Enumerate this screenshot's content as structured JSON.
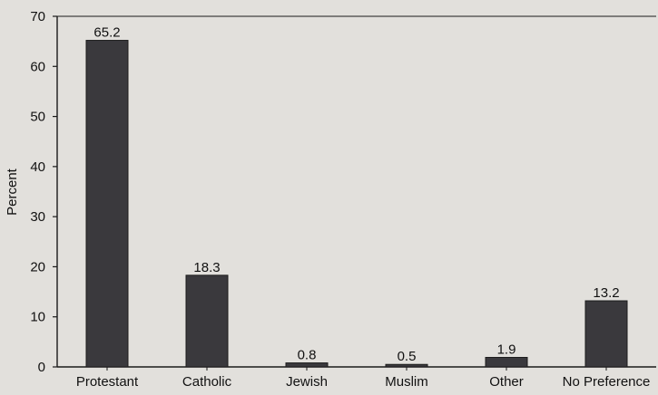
{
  "chart_data": {
    "type": "bar",
    "title": "",
    "xlabel": "",
    "ylabel": "Percent",
    "ylim": [
      0,
      70
    ],
    "yticks": [
      0,
      10,
      20,
      30,
      40,
      50,
      60,
      70
    ],
    "grid": false,
    "categories": [
      "Protestant",
      "Catholic",
      "Jewish",
      "Muslim",
      "Other",
      "No Preference"
    ],
    "values": [
      65.2,
      18.3,
      0.8,
      0.5,
      1.9,
      13.2
    ],
    "data_labels": [
      "65.2",
      "18.3",
      "0.8",
      "0.5",
      "1.9",
      "13.2"
    ],
    "colors": {
      "bar": "#3a393d",
      "axis": "#1a1a1a",
      "background": "#e2e0dc"
    }
  }
}
